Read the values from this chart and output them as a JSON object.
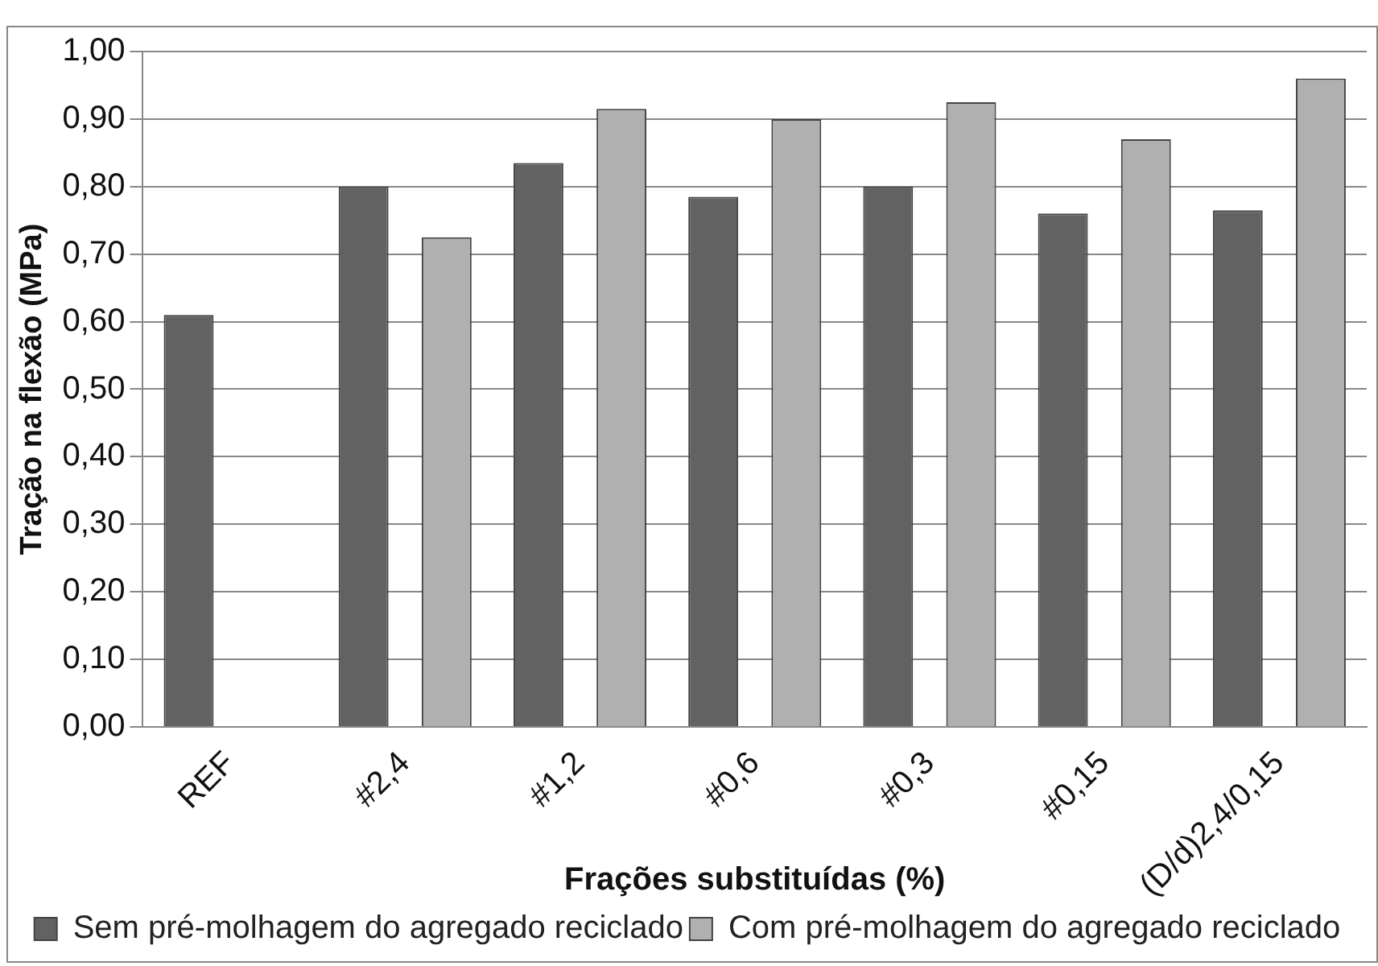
{
  "chart_data": {
    "type": "bar",
    "xlabel": "Frações substituídas (%)",
    "ylabel": "Tração na flexão (MPa)",
    "categories": [
      "REF",
      "#2,4",
      "#1,2",
      "#0,6",
      "#0,3",
      "#0,15",
      "(D/d)2,4/0,15"
    ],
    "series": [
      {
        "name": "Sem pré-molhagem do agregado reciclado",
        "color": "#626262",
        "values": [
          0.61,
          0.8,
          0.835,
          0.785,
          0.8,
          0.76,
          0.765
        ]
      },
      {
        "name": "Com pré-molhagem do agregado reciclado",
        "color": "#b0b0b0",
        "values": [
          null,
          0.725,
          0.915,
          0.9,
          0.925,
          0.87,
          0.96
        ]
      }
    ],
    "ylim": [
      0,
      1
    ],
    "yticks": [
      {
        "value": 0,
        "label": "0,00"
      },
      {
        "value": 0.1,
        "label": "0,10"
      },
      {
        "value": 0.2,
        "label": "0,20"
      },
      {
        "value": 0.3,
        "label": "0,30"
      },
      {
        "value": 0.4,
        "label": "0,40"
      },
      {
        "value": 0.5,
        "label": "0,50"
      },
      {
        "value": 0.6,
        "label": "0,60"
      },
      {
        "value": 0.7,
        "label": "0,70"
      },
      {
        "value": 0.8,
        "label": "0,80"
      },
      {
        "value": 0.9,
        "label": "0,90"
      },
      {
        "value": 1,
        "label": "1,00"
      }
    ],
    "grid": "y",
    "legend": "bottom"
  }
}
